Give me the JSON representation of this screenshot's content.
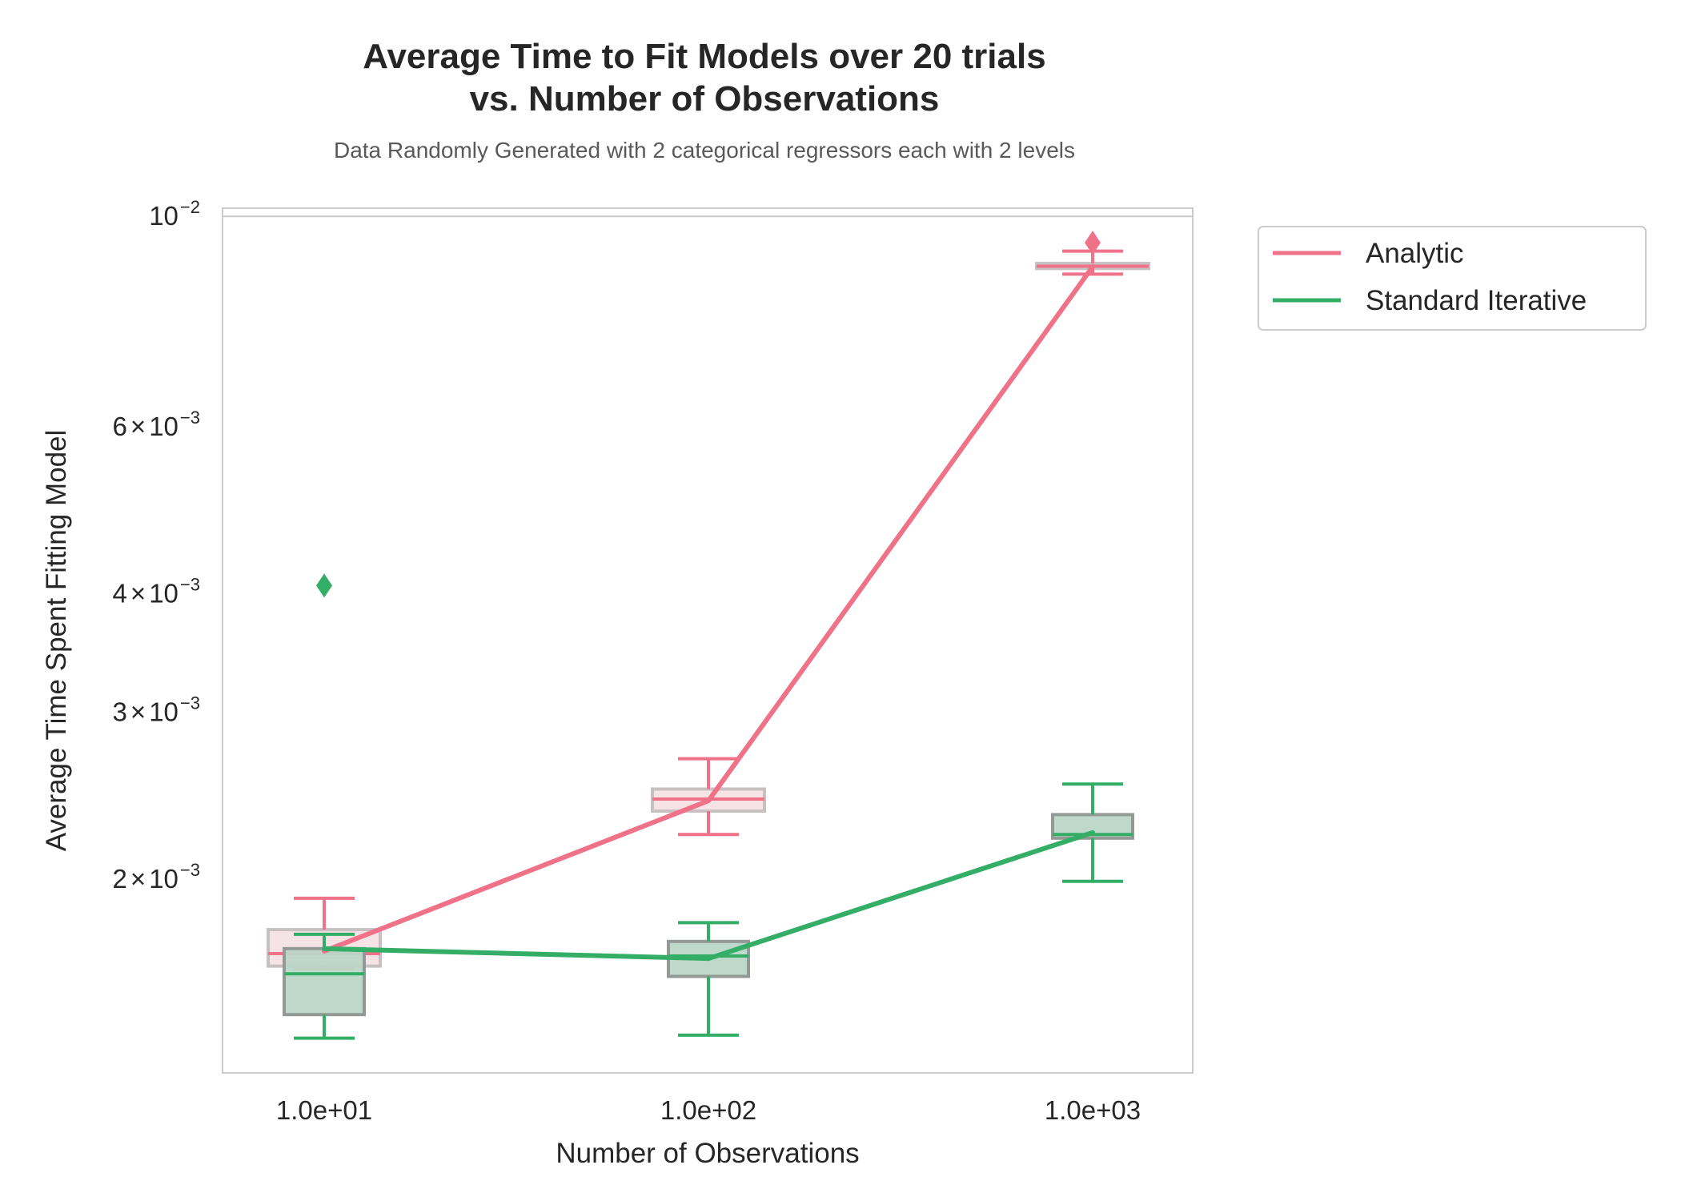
{
  "chart_data": {
    "type": "line",
    "title_line1": "Average Time to Fit Models over 20 trials",
    "title_line2": "vs. Number of Observations",
    "subtitle": "Data Randomly Generated with 2 categorical regressors each with 2 levels",
    "xlabel": "Number of Observations",
    "ylabel": "Average Time Spent Fitting Model",
    "x_scale": "log",
    "y_scale": "log",
    "x": [
      10,
      100,
      1000
    ],
    "x_tick_labels": [
      "1.0e+01",
      "1.0e+02",
      "1.0e+03"
    ],
    "ylim": [
      0.00125,
      0.0102
    ],
    "y_ticks": [
      {
        "value": 0.002,
        "mant": "2",
        "times": "×",
        "base": "10",
        "exp": "−3"
      },
      {
        "value": 0.003,
        "mant": "3",
        "times": "×",
        "base": "10",
        "exp": "−3"
      },
      {
        "value": 0.004,
        "mant": "4",
        "times": "×",
        "base": "10",
        "exp": "−3"
      },
      {
        "value": 0.006,
        "mant": "6",
        "times": "×",
        "base": "10",
        "exp": "−3"
      },
      {
        "value": 0.01,
        "mant": "",
        "times": "",
        "base": "10",
        "exp": "−2"
      }
    ],
    "grid": false,
    "legend_position": "outside-top-right",
    "series": [
      {
        "name": "Analytic",
        "color": "#f07289",
        "box_fill": "#f3d9dd",
        "mean": [
          0.00168,
          0.00242,
          0.00885
        ],
        "boxes": [
          {
            "whislo": 0.00161,
            "q1": 0.00162,
            "med": 0.00167,
            "q3": 0.00177,
            "whishi": 0.00191,
            "fliers": []
          },
          {
            "whislo": 0.00223,
            "q1": 0.00236,
            "med": 0.00243,
            "q3": 0.00249,
            "whishi": 0.00268,
            "fliers": []
          },
          {
            "whislo": 0.00869,
            "q1": 0.00881,
            "med": 0.00886,
            "q3": 0.00892,
            "whishi": 0.00919,
            "fliers": [
              0.00938
            ]
          }
        ]
      },
      {
        "name": "Standard Iterative",
        "color": "#34ae67",
        "box_fill": "#bbd6c7",
        "mean": [
          0.00169,
          0.00165,
          0.00224
        ],
        "boxes": [
          {
            "whislo": 0.00136,
            "q1": 0.00144,
            "med": 0.00159,
            "q3": 0.00169,
            "whishi": 0.00175,
            "fliers": [
              0.00408
            ]
          },
          {
            "whislo": 0.00137,
            "q1": 0.00158,
            "med": 0.00166,
            "q3": 0.00172,
            "whishi": 0.0018,
            "fliers": []
          },
          {
            "whislo": 0.00199,
            "q1": 0.00221,
            "med": 0.00223,
            "q3": 0.00234,
            "whishi": 0.00252,
            "fliers": []
          }
        ]
      }
    ]
  }
}
